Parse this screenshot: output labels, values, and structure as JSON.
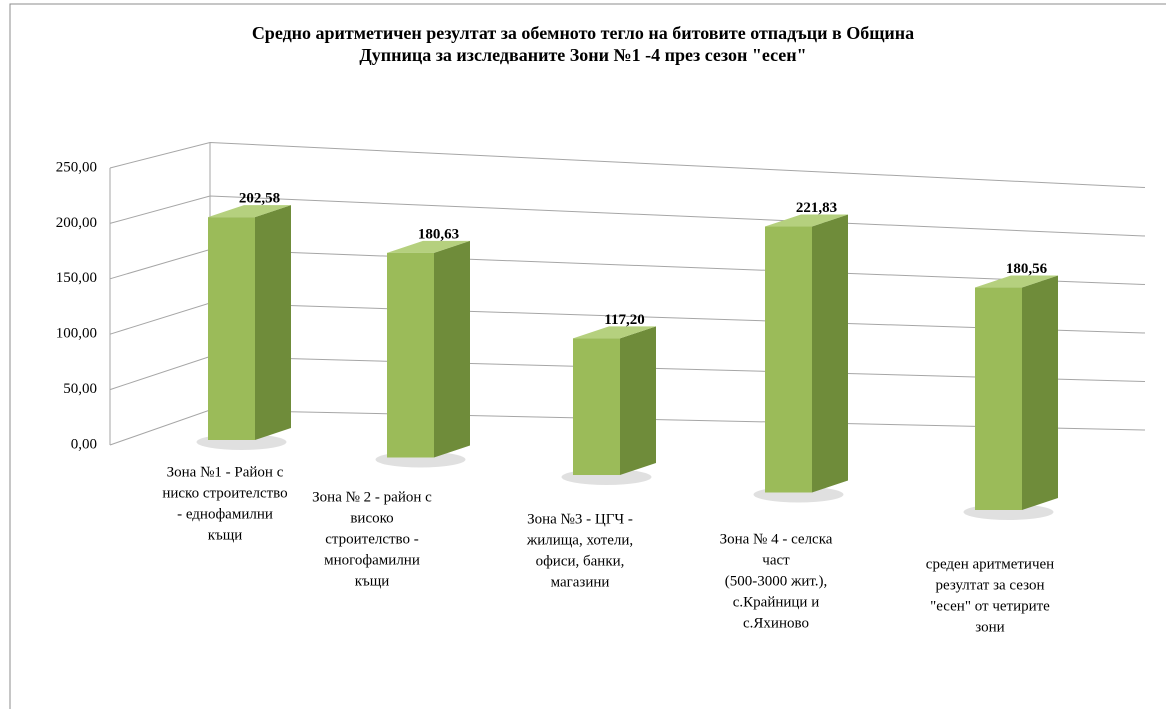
{
  "chart_data": {
    "type": "bar3d",
    "title": [
      "Средно аритметичен резултат за обемното тегло на битовите отпадъци в Община",
      "Дупница за изследваните Зони №1 -4  през сезон \"есен\""
    ],
    "categories": [
      [
        "Зона №1 - Район с",
        "ниско строителство",
        "- еднофамилни",
        "къщи"
      ],
      [
        "Зона № 2 - район с",
        "високо",
        "строителство  -",
        "многофамилни",
        "къщи"
      ],
      [
        "Зона №3 - ЦГЧ -",
        "жилища, хотели,",
        "офиси, банки,",
        "магазини"
      ],
      [
        "Зона № 4 - селска",
        "част",
        "(500-3000 жит.),",
        "с.Крайници и",
        "с.Яхиново"
      ],
      [
        "среден аритметичен",
        "резултат за сезон",
        "\"есен\" от четирите",
        "зони"
      ]
    ],
    "values": [
      202.58,
      180.63,
      117.2,
      221.83,
      180.56
    ],
    "value_labels": [
      "202,58",
      "180,63",
      "117,20",
      "221,83",
      "180,56"
    ],
    "color": "#9bbb59",
    "ylim": [
      0,
      250
    ],
    "yticks": [
      {
        "value": 0,
        "label": "0,00"
      },
      {
        "value": 50,
        "label": "50,00"
      },
      {
        "value": 100,
        "label": "100,00"
      },
      {
        "value": 150,
        "label": "150,00"
      },
      {
        "value": 200,
        "label": "200,00"
      },
      {
        "value": 250,
        "label": "250,00"
      }
    ],
    "grid": true
  }
}
